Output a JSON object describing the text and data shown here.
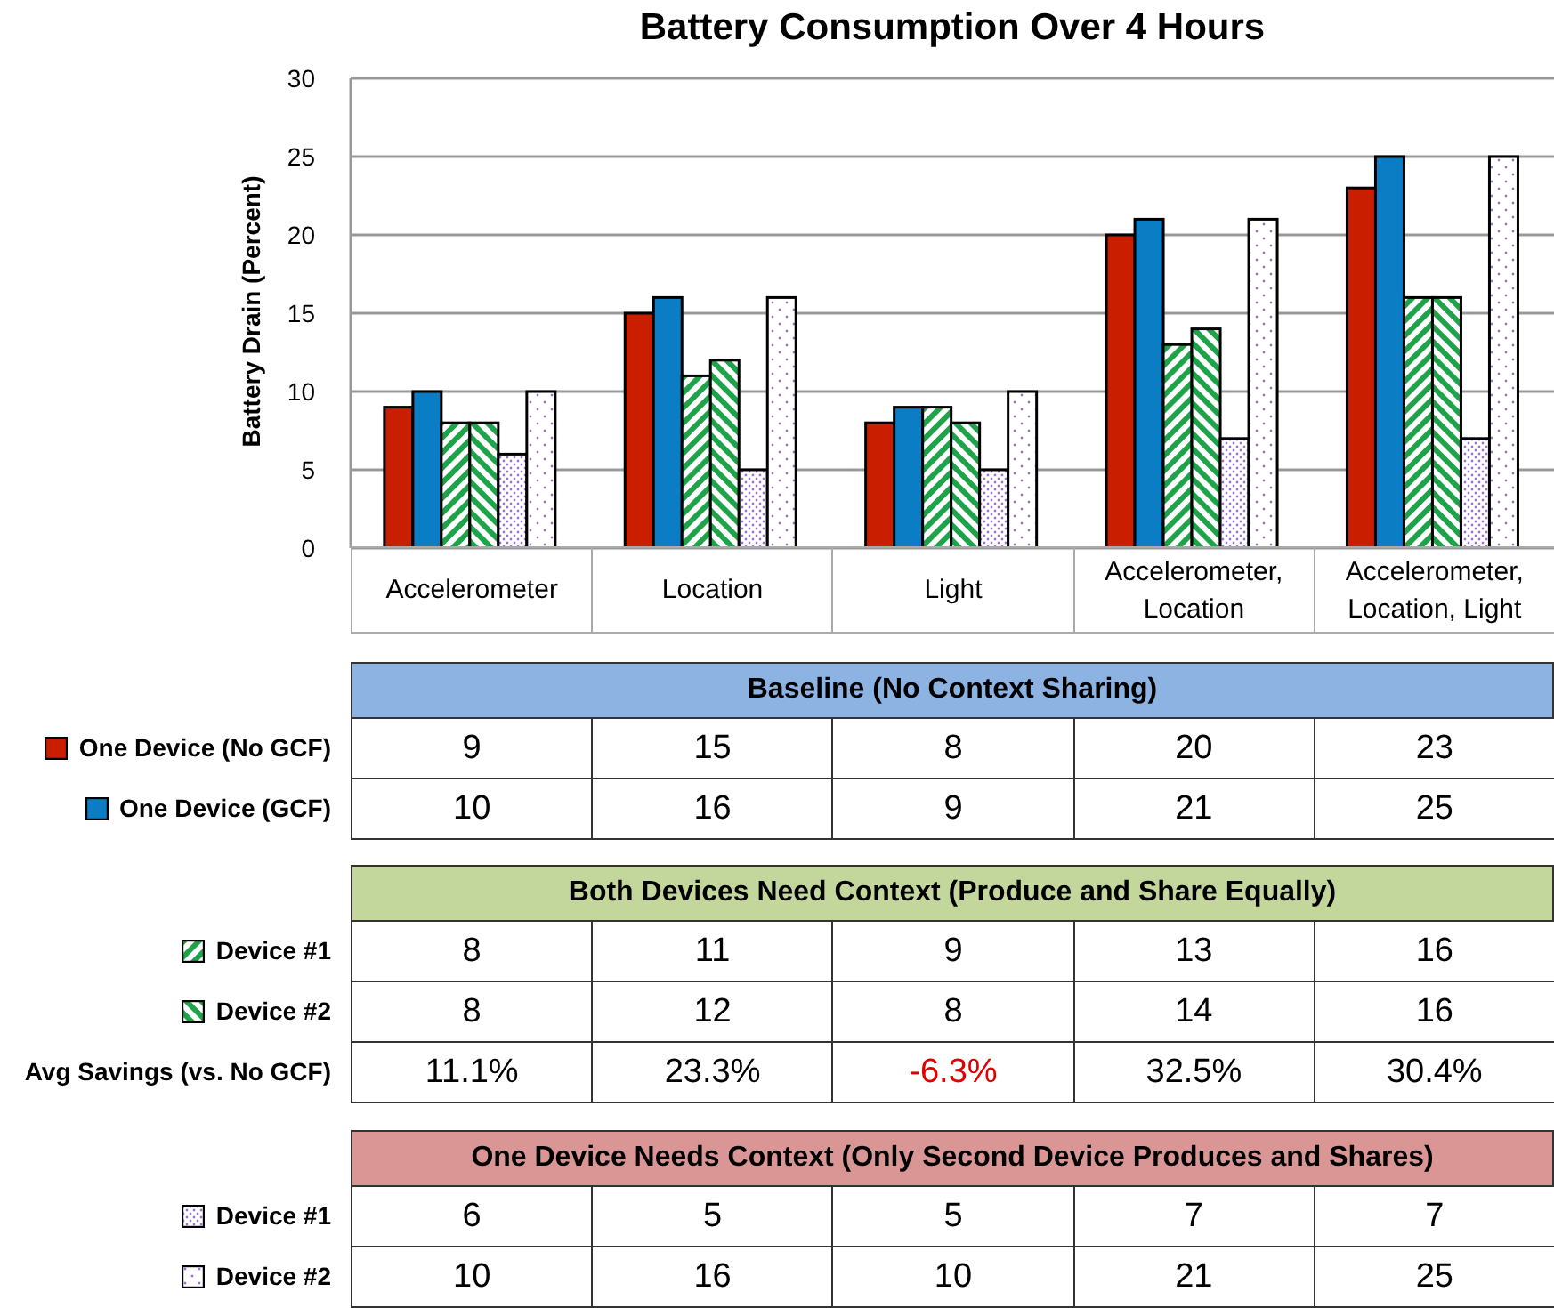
{
  "chart_data": {
    "type": "bar",
    "title": "Battery Consumption Over 4 Hours",
    "ylabel": "Battery Drain (Percent)",
    "categories": [
      "Accelerometer",
      "Location",
      "Light",
      "Accelerometer, Location",
      "Accelerometer, Location, Light"
    ],
    "series": [
      {
        "name": "One Device (No GCF)",
        "color": "#c91f00",
        "values": [
          9,
          15,
          8,
          20,
          23
        ]
      },
      {
        "name": "One Device (GCF)",
        "color": "#0b7dc4",
        "values": [
          10,
          16,
          9,
          21,
          25
        ]
      },
      {
        "name": "Device #1",
        "color": "#1fa34a",
        "values": [
          8,
          11,
          9,
          13,
          16
        ]
      },
      {
        "name": "Device #2",
        "color": "#1fa34a",
        "values": [
          8,
          12,
          8,
          14,
          16
        ]
      },
      {
        "name": "Device #1",
        "color": "#9a6fd6",
        "values": [
          6,
          5,
          5,
          7,
          7
        ]
      },
      {
        "name": "Device #2",
        "color": "#9a6fd6",
        "values": [
          10,
          16,
          10,
          21,
          25
        ]
      }
    ],
    "annotations": [
      "Baseline (No Context Sharing)",
      "Both Devices Need Context (Produce and Share Equally)",
      "One Device Needs Context (Only Second Device Produces  and Shares)",
      "Avg Savings (vs. No GCF)",
      "11.1%",
      "23.3%",
      "-6.3%",
      "32.5%",
      "30.4%"
    ],
    "ylim": [
      0,
      30
    ],
    "yticks": [
      0,
      5,
      10,
      15,
      20,
      25,
      30
    ],
    "grid": "y",
    "legend": "bottom",
    "data_labels": true
  }
}
